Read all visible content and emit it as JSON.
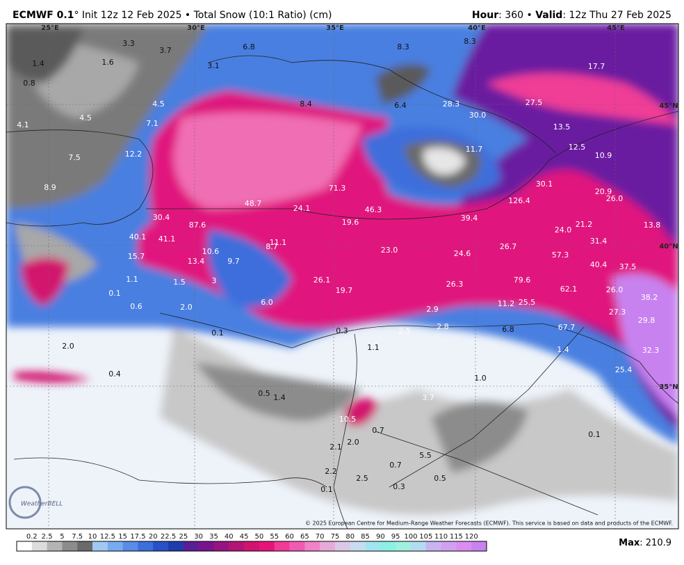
{
  "header": {
    "model": "ECMWF 0.1",
    "init": "° Init 12z 12 Feb 2025 • Total Snow (10:1 Ratio) (cm)",
    "hour_label": "Hour",
    "hour": ": 360 • ",
    "valid_label": "Valid",
    "valid": ": 12z Thu 27 Feb 2025"
  },
  "grid_labels": [
    "25°E",
    "30°E",
    "35°E",
    "40°E",
    "45°E",
    "45°N",
    "40°N",
    "35°N"
  ],
  "spot_values": [
    "3.3",
    "3.7",
    "1.6",
    "1.4",
    "0.8",
    "3.1",
    "6.8",
    "8.3",
    "8.3",
    "17.7",
    "4.5",
    "4.1",
    "4.5",
    "7.1",
    "8.4",
    "6.4",
    "28.3",
    "30.0",
    "27.5",
    "13.5",
    "12.5",
    "10.9",
    "12.2",
    "7.5",
    "8.9",
    "11.7",
    "30.1",
    "20.9",
    "26.0",
    "71.3",
    "48.7",
    "24.1",
    "46.3",
    "126.4",
    "30.4",
    "87.6",
    "19.6",
    "39.4",
    "24.0",
    "21.2",
    "13.8",
    "40.1",
    "41.1",
    "11.1",
    "8.7",
    "10.6",
    "23.0",
    "24.6",
    "26.7",
    "31.4",
    "15.7",
    "13.4",
    "9.7",
    "57.3",
    "40.4",
    "37.5",
    "1.1",
    "1.5",
    "3",
    "26.1",
    "19.7",
    "79.6",
    "62.1",
    "26.0",
    "38.2",
    "26.3",
    "0.1",
    "0.6",
    "2.0",
    "6.0",
    "11.2",
    "25.5",
    "27.3",
    "29.8",
    "2.9",
    "2.8",
    "2.5",
    "0.3",
    "0.1",
    "6.8",
    "67.7",
    "1.4",
    "32.3",
    "2.0",
    "1.1",
    "25.4",
    "0.4",
    "1.0",
    "0.5",
    "1.4",
    "3.7",
    "10.5",
    "0.7",
    "0.1",
    "2.0",
    "2.1",
    "5.5",
    "0.7",
    "2.2",
    "2.5",
    "0.5",
    "0.3",
    "0.1"
  ],
  "branding": "WeatherBELL",
  "copyright": "© 2025 European Centre for Medium-Range Weather Forecasts (ECMWF). This service is based on data and products of the ECMWF.",
  "colorbar": {
    "labels": [
      "0.2",
      "2.5",
      "5",
      "7.5",
      "10",
      "12.5",
      "15",
      "17.5",
      "20",
      "22.5",
      "25",
      "30",
      "35",
      "40",
      "45",
      "50",
      "55",
      "60",
      "65",
      "70",
      "75",
      "80",
      "85",
      "90",
      "95",
      "100",
      "105",
      "110",
      "115",
      "120"
    ],
    "colors": [
      "#ffffff",
      "#dcdcdc",
      "#b4b4b4",
      "#8c8c8c",
      "#6a6a6a",
      "#a0c8f0",
      "#78aaf0",
      "#5a8ce6",
      "#3c6edc",
      "#2850c8",
      "#1e3caa",
      "#5a1e96",
      "#78148c",
      "#961482",
      "#b41478",
      "#d2146e",
      "#e6147a",
      "#f03c96",
      "#f05ab4",
      "#f082c8",
      "#e6aad8",
      "#dcc8e6",
      "#c8dcf0",
      "#a0e6f0",
      "#8cf0e6",
      "#a0f0e0",
      "#b4dcf0",
      "#c8b4f0",
      "#d2a0f0",
      "#dc8cf0",
      "#c882f0"
    ]
  },
  "max_label": "Max",
  "max_value": ": 210.9"
}
